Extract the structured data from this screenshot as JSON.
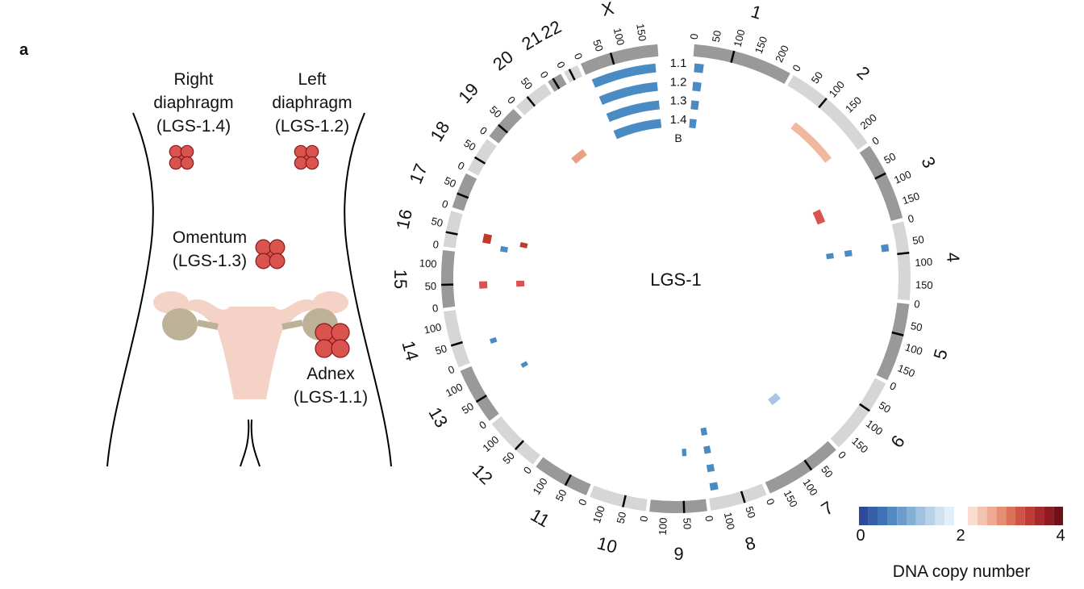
{
  "panel_label": "a",
  "anatomy": {
    "sites": [
      {
        "lines": [
          "Right",
          "diaphragm",
          "(LGS-1.4)"
        ]
      },
      {
        "lines": [
          "Left",
          "diaphragm",
          "(LGS-1.2)"
        ]
      },
      {
        "lines": [
          "Omentum",
          "(LGS-1.3)"
        ]
      },
      {
        "lines": [
          "Adnex",
          "(LGS-1.1)"
        ]
      }
    ]
  },
  "circos": {
    "center_label": "LGS-1",
    "sample_labels": [
      "1.1",
      "1.2",
      "1.3",
      "1.4",
      "B"
    ],
    "chromosomes": [
      {
        "name": "1",
        "ticks": [
          0,
          50,
          100,
          150,
          200
        ]
      },
      {
        "name": "2",
        "ticks": [
          0,
          50,
          100,
          150,
          200
        ]
      },
      {
        "name": "3",
        "ticks": [
          0,
          50,
          100,
          150
        ]
      },
      {
        "name": "4",
        "ticks": [
          0,
          50,
          100,
          150
        ]
      },
      {
        "name": "5",
        "ticks": [
          0,
          50,
          100,
          150
        ]
      },
      {
        "name": "6",
        "ticks": [
          0,
          50,
          100,
          150
        ]
      },
      {
        "name": "7",
        "ticks": [
          0,
          50,
          100,
          150
        ]
      },
      {
        "name": "8",
        "ticks": [
          0,
          50,
          100
        ]
      },
      {
        "name": "9",
        "ticks": [
          0,
          50,
          100
        ]
      },
      {
        "name": "10",
        "ticks": [
          0,
          50,
          100
        ]
      },
      {
        "name": "11",
        "ticks": [
          0,
          50,
          100
        ]
      },
      {
        "name": "12",
        "ticks": [
          0,
          50,
          100
        ]
      },
      {
        "name": "13",
        "ticks": [
          0,
          50,
          100
        ]
      },
      {
        "name": "14",
        "ticks": [
          0,
          50,
          100
        ]
      },
      {
        "name": "15",
        "ticks": [
          0,
          50,
          100
        ]
      },
      {
        "name": "16",
        "ticks": [
          0,
          50
        ]
      },
      {
        "name": "17",
        "ticks": [
          0,
          50
        ]
      },
      {
        "name": "18",
        "ticks": [
          0,
          50
        ]
      },
      {
        "name": "19",
        "ticks": [
          0,
          50
        ]
      },
      {
        "name": "20",
        "ticks": [
          0,
          50
        ]
      },
      {
        "name": "21",
        "ticks": [
          0
        ]
      },
      {
        "name": "22",
        "ticks": [
          0
        ]
      },
      {
        "name": "X",
        "ticks": [
          0,
          50,
          100,
          150
        ]
      }
    ]
  },
  "legend": {
    "ticks": [
      0,
      2,
      4
    ],
    "title": "DNA copy number"
  }
}
